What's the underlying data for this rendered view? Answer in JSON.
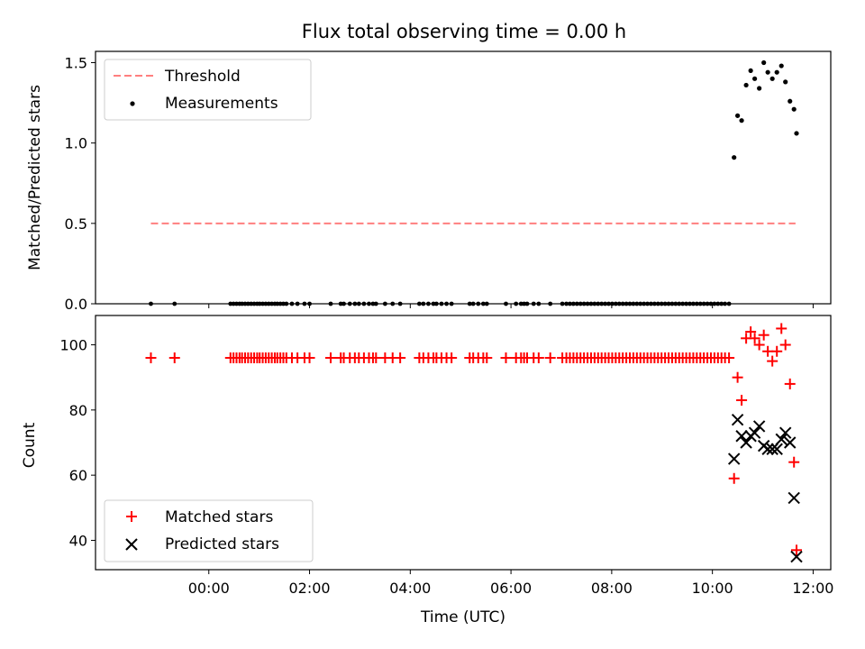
{
  "chart_data": [
    {
      "type": "scatter",
      "title": "Flux total observing time = 0.00 h",
      "ylabel": "Matched/Predicted stars",
      "xlabel": "",
      "ylim": [
        0,
        1.57
      ],
      "xlim_hours": [
        -2.25,
        12.35
      ],
      "yticks": [
        0.0,
        0.5,
        1.0,
        1.5
      ],
      "yticklabels": [
        "0.0",
        "0.5",
        "1.0",
        "1.5"
      ],
      "legend_position": "top-left",
      "threshold": {
        "name": "Threshold",
        "value": 0.5,
        "x_start": -1.15,
        "x_end": 11.65,
        "color": "#ff7f7f",
        "style": "dashed"
      },
      "measurements": {
        "name": "Measurements",
        "color": "#000000",
        "x_zero_hours": [
          -1.15,
          -0.68,
          0.43,
          0.49,
          0.55,
          0.61,
          0.66,
          0.72,
          0.78,
          0.84,
          0.9,
          0.96,
          1.01,
          1.07,
          1.13,
          1.19,
          1.25,
          1.31,
          1.36,
          1.42,
          1.48,
          1.54,
          1.65,
          1.76,
          1.9,
          2.0,
          2.42,
          2.62,
          2.68,
          2.8,
          2.9,
          2.98,
          3.08,
          3.18,
          3.26,
          3.32,
          3.5,
          3.65,
          3.8,
          4.18,
          4.26,
          4.36,
          4.46,
          4.52,
          4.62,
          4.72,
          4.82,
          5.18,
          5.25,
          5.35,
          5.45,
          5.52,
          5.9,
          6.1,
          6.2,
          6.26,
          6.32,
          6.45,
          6.55,
          6.78,
          7.02,
          7.1,
          7.17,
          7.24,
          7.31,
          7.38,
          7.45,
          7.52,
          7.59,
          7.66,
          7.73,
          7.8,
          7.87,
          7.94,
          8.01,
          8.08,
          8.15,
          8.22,
          8.29,
          8.36,
          8.43,
          8.5,
          8.57,
          8.64,
          8.71,
          8.78,
          8.85,
          8.92,
          8.99,
          9.06,
          9.13,
          9.2,
          9.27,
          9.34,
          9.41,
          9.48,
          9.55,
          9.62,
          9.69,
          9.76,
          9.83,
          9.9,
          9.97,
          10.04,
          10.11,
          10.18,
          10.25,
          10.33
        ],
        "x_hours": [
          10.43,
          10.5,
          10.58,
          10.67,
          10.76,
          10.84,
          10.93,
          11.02,
          11.1,
          11.19,
          11.28,
          11.37,
          11.45,
          11.54,
          11.62,
          11.67
        ],
        "y": [
          0.91,
          1.17,
          1.14,
          1.36,
          1.45,
          1.4,
          1.34,
          1.5,
          1.44,
          1.4,
          1.44,
          1.48,
          1.38,
          1.26,
          1.21,
          1.06
        ]
      }
    },
    {
      "type": "scatter",
      "xlabel": "Time (UTC)",
      "ylabel": "Count",
      "ylim": [
        31,
        109
      ],
      "xlim_hours": [
        -2.25,
        12.35
      ],
      "yticks": [
        40,
        60,
        80,
        100
      ],
      "yticklabels": [
        "40",
        "60",
        "80",
        "100"
      ],
      "xticks_hours": [
        0,
        2,
        4,
        6,
        8,
        10,
        12
      ],
      "xticklabels": [
        "00:00",
        "02:00",
        "04:00",
        "06:00",
        "08:00",
        "10:00",
        "12:00"
      ],
      "legend_position": "bottom-left",
      "series": [
        {
          "name": "Matched stars",
          "marker": "plus",
          "color": "#ff0000",
          "flat_value": 96,
          "flat_x_hours": [
            -1.15,
            -0.68,
            0.43,
            0.49,
            0.55,
            0.61,
            0.66,
            0.72,
            0.78,
            0.84,
            0.9,
            0.96,
            1.01,
            1.07,
            1.13,
            1.19,
            1.25,
            1.31,
            1.36,
            1.42,
            1.48,
            1.54,
            1.65,
            1.76,
            1.9,
            2.0,
            2.42,
            2.62,
            2.68,
            2.8,
            2.9,
            2.98,
            3.08,
            3.18,
            3.26,
            3.32,
            3.5,
            3.65,
            3.8,
            4.18,
            4.26,
            4.36,
            4.46,
            4.52,
            4.62,
            4.72,
            4.82,
            5.18,
            5.25,
            5.35,
            5.45,
            5.52,
            5.9,
            6.1,
            6.2,
            6.26,
            6.32,
            6.45,
            6.55,
            6.78,
            7.02,
            7.1,
            7.17,
            7.24,
            7.31,
            7.38,
            7.45,
            7.52,
            7.59,
            7.66,
            7.73,
            7.8,
            7.87,
            7.94,
            8.01,
            8.08,
            8.15,
            8.22,
            8.29,
            8.36,
            8.43,
            8.5,
            8.57,
            8.64,
            8.71,
            8.78,
            8.85,
            8.92,
            8.99,
            9.06,
            9.13,
            9.2,
            9.27,
            9.34,
            9.41,
            9.48,
            9.55,
            9.62,
            9.69,
            9.76,
            9.83,
            9.9,
            9.97,
            10.04,
            10.11,
            10.18,
            10.25,
            10.33
          ],
          "x_hours": [
            10.43,
            10.5,
            10.58,
            10.67,
            10.76,
            10.84,
            10.93,
            11.02,
            11.1,
            11.19,
            11.28,
            11.37,
            11.45,
            11.54,
            11.62,
            11.67
          ],
          "y": [
            59,
            90,
            83,
            102,
            104,
            102,
            100,
            103,
            98,
            95,
            98,
            105,
            100,
            88,
            64,
            37
          ]
        },
        {
          "name": "Predicted stars",
          "marker": "x",
          "color": "#000000",
          "x_hours": [
            10.43,
            10.5,
            10.58,
            10.67,
            10.76,
            10.84,
            10.93,
            11.02,
            11.1,
            11.19,
            11.28,
            11.37,
            11.45,
            11.54,
            11.62,
            11.67
          ],
          "y": [
            65,
            77,
            72,
            70,
            72,
            73,
            75,
            69,
            68,
            68,
            68,
            71,
            73,
            70,
            53,
            35
          ]
        }
      ]
    }
  ]
}
